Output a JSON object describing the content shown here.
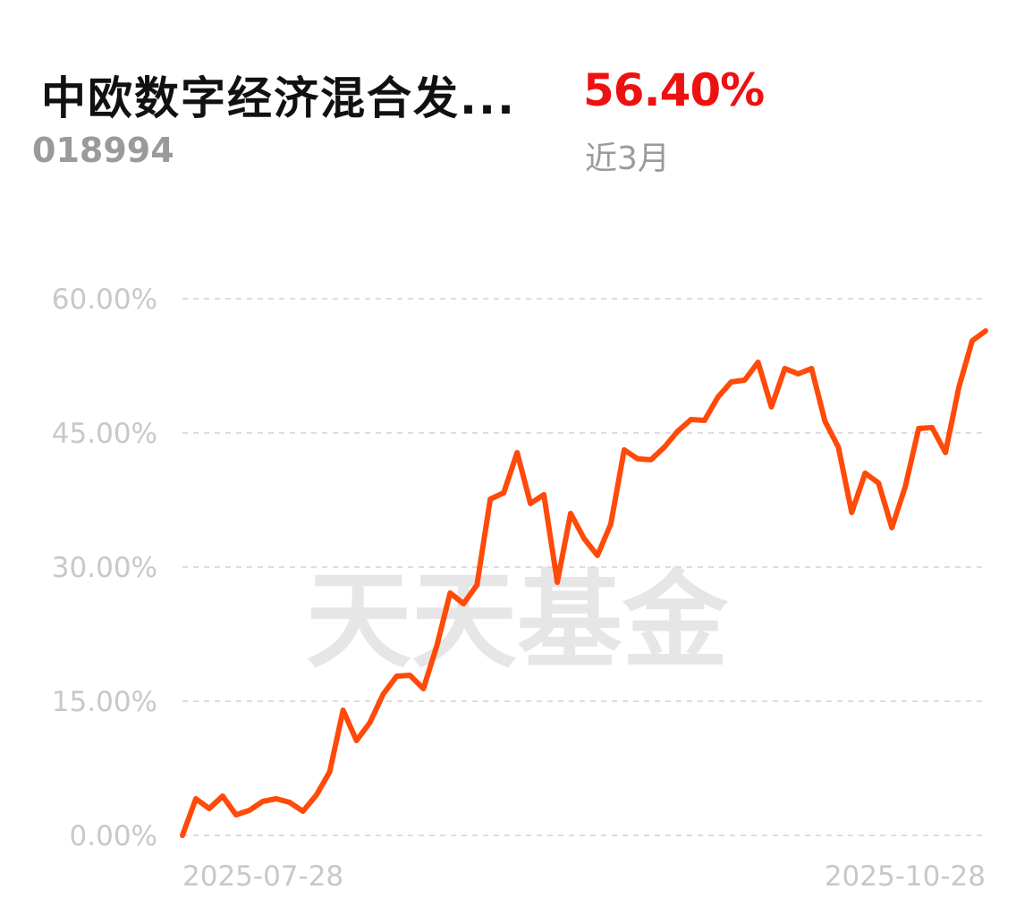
{
  "header": {
    "fund_name": "中欧数字经济混合发...",
    "fund_code": "018994",
    "return_value": "56.40%",
    "period_label": "近3月"
  },
  "watermark": "天天基金",
  "colors": {
    "line": "#ff4a0a",
    "return_value": "#ee1111",
    "grid": "#dddddd",
    "tick_text": "#c8c8c8"
  },
  "chart_data": {
    "type": "line",
    "title": "",
    "xlabel": "",
    "ylabel": "",
    "ylim": [
      0,
      60
    ],
    "yticks": [
      0,
      15,
      30,
      45,
      60
    ],
    "ytick_labels": [
      "0.00%",
      "15.00%",
      "30.00%",
      "45.00%",
      "60.00%"
    ],
    "xtick_labels": [
      "2025-07-28",
      "2025-10-28"
    ],
    "grid": true,
    "series": [
      {
        "values": [
          0.0,
          4.1,
          3.0,
          4.4,
          2.3,
          2.8,
          3.8,
          4.1,
          3.7,
          2.7,
          4.5,
          7.1,
          14.0,
          10.6,
          12.6,
          15.8,
          17.8,
          17.9,
          16.4,
          21.2,
          27.1,
          25.9,
          28.0,
          37.6,
          38.3,
          42.8,
          37.1,
          38.1,
          28.3,
          36.0,
          33.2,
          31.3,
          34.8,
          43.1,
          42.1,
          42.0,
          43.4,
          45.2,
          46.5,
          46.4,
          49.0,
          50.7,
          50.9,
          52.9,
          47.9,
          52.2,
          51.6,
          52.2,
          46.3,
          43.4,
          36.1,
          40.5,
          39.4,
          34.4,
          39.0,
          45.5,
          45.6,
          42.8,
          50.1,
          55.3,
          56.4
        ]
      }
    ]
  }
}
